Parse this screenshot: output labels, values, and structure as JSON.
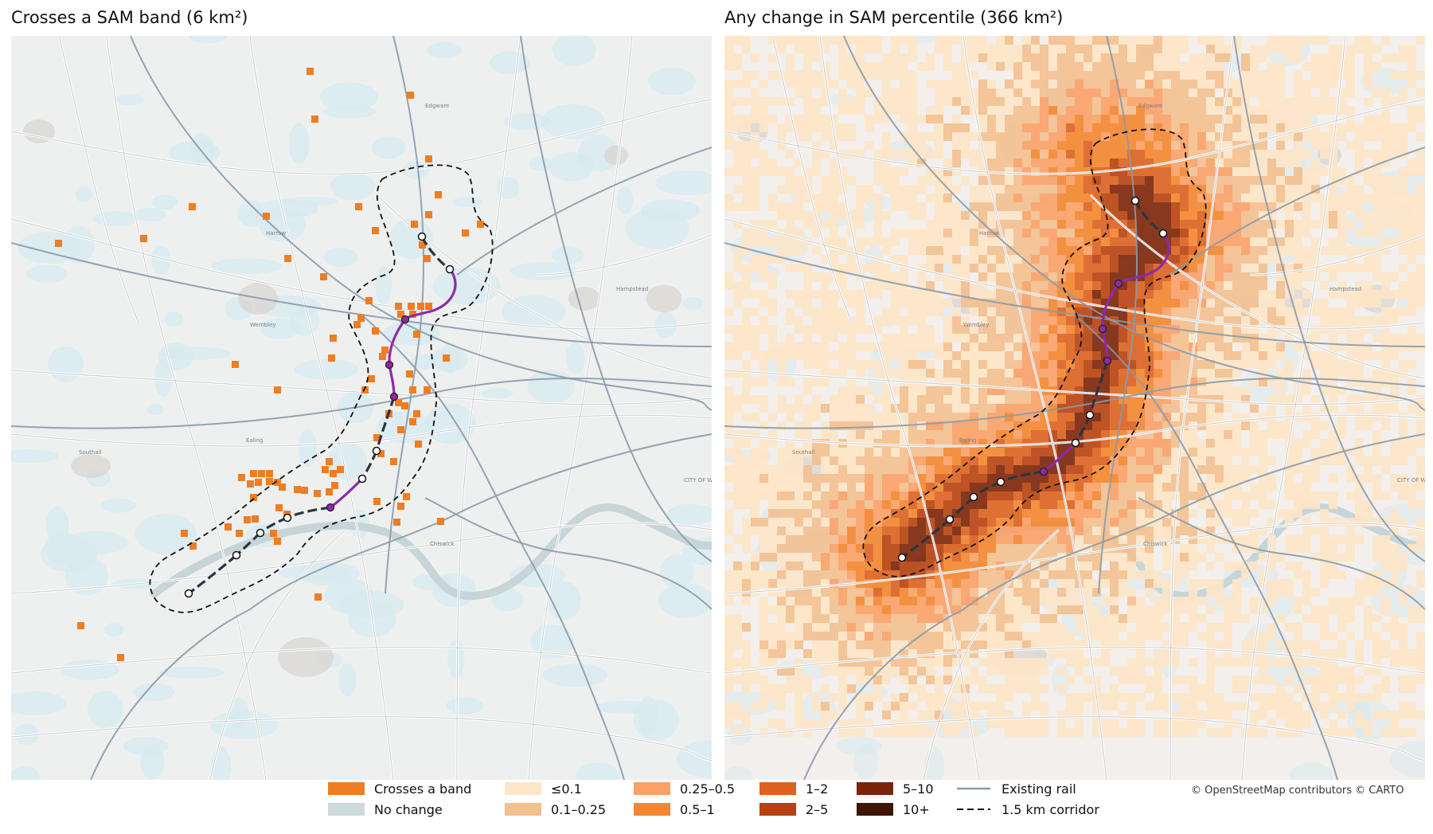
{
  "panels": {
    "left": {
      "title": "Crosses a SAM band  (6 km²)"
    },
    "right": {
      "title": "Any change in SAM percentile  (366 km²)"
    }
  },
  "map_labels": {
    "edgware": "Edgware",
    "hampstead": "Hampstead",
    "wembley": "Wembley",
    "ealing": "Ealing",
    "southall": "Southall",
    "chiswick": "Chiswick",
    "city": "CITY OF WEST",
    "harrow": "Harrow"
  },
  "legend": {
    "crosses": "Crosses a band",
    "nochange": "No change",
    "b1": "≤0.1",
    "b2": "0.1–0.25",
    "b3": "0.25–0.5",
    "b4": "0.5–1",
    "b5": "1–2",
    "b6": "2–5",
    "b7": "5–10",
    "b8": "10+",
    "rail": "Existing rail",
    "corridor": "1.5 km corridor"
  },
  "colors": {
    "crosses": "#ef7d22",
    "nochange": "#cdd9da",
    "b1": "#fde6c8",
    "b2": "#f3c08f",
    "b3": "#fba067",
    "b4": "#f3862f",
    "b5": "#dd6220",
    "b6": "#b8420f",
    "b7": "#7b2309",
    "b8": "#3e1704",
    "rail": "#8a9aab",
    "route_new": "#8e2aa6",
    "route_existing": "#2c3440"
  },
  "attribution": "© OpenStreetMap contributors © CARTO"
}
